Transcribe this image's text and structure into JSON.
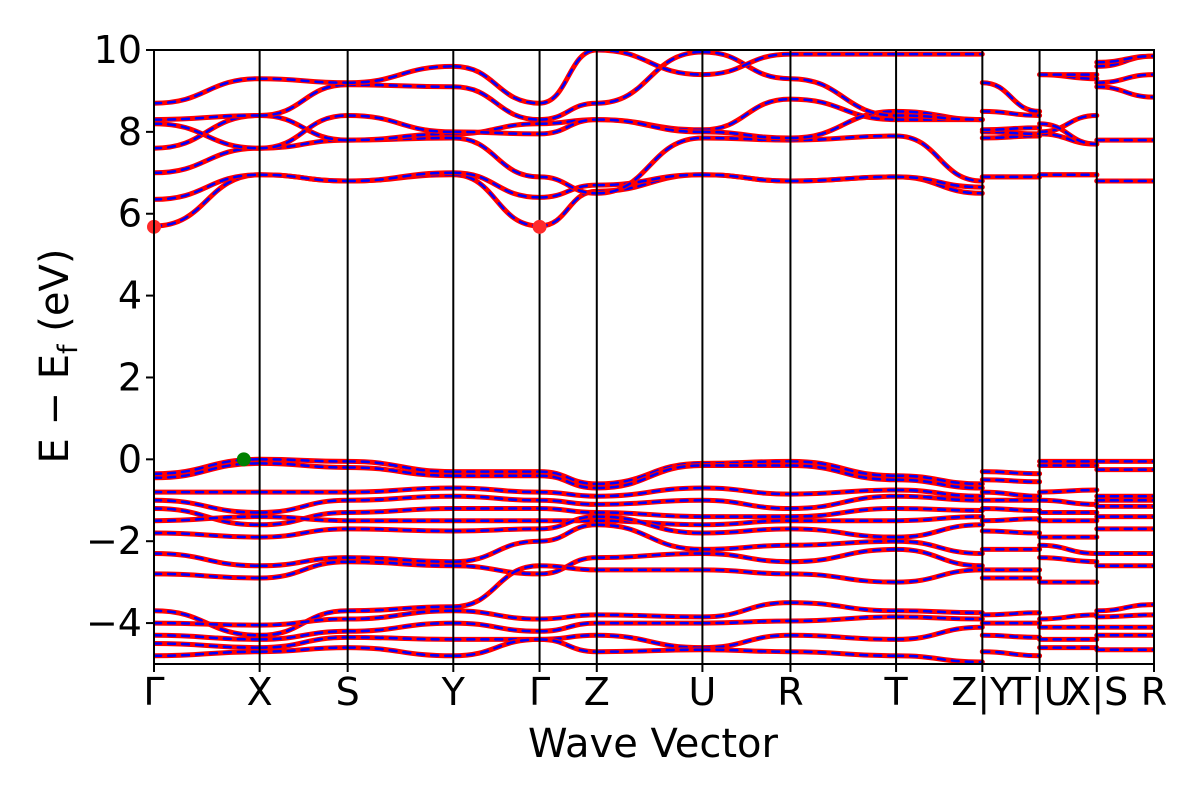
{
  "chart_data": {
    "type": "line",
    "title": "",
    "xlabel": "Wave Vector",
    "ylabel_parts": [
      "E − E",
      "f",
      " (eV)"
    ],
    "ylim": [
      -5,
      10
    ],
    "yticks": [
      -4,
      -2,
      0,
      2,
      4,
      6,
      8,
      10
    ],
    "grid": false,
    "line_colors": [
      "#ff0000",
      "#0000ff"
    ],
    "kpoints": [
      {
        "label": "Γ",
        "x": 0.0
      },
      {
        "label": "X",
        "x": 1.2
      },
      {
        "label": "S",
        "x": 2.2
      },
      {
        "label": "Y",
        "x": 3.4
      },
      {
        "label": "Γ",
        "x": 4.38
      },
      {
        "label": "Z",
        "x": 5.03
      },
      {
        "label": "U",
        "x": 6.23
      },
      {
        "label": "R",
        "x": 7.23
      },
      {
        "label": "T",
        "x": 8.43
      },
      {
        "label": "Z|Y",
        "x": 9.41
      },
      {
        "label": "T|U",
        "x": 10.06
      },
      {
        "label": "X|S",
        "x": 10.71
      },
      {
        "label": "R",
        "x": 11.36
      }
    ],
    "segments": [
      {
        "from": 0.0,
        "to": 1.2
      },
      {
        "from": 1.2,
        "to": 2.2
      },
      {
        "from": 2.2,
        "to": 3.4
      },
      {
        "from": 3.4,
        "to": 4.38
      },
      {
        "from": 4.38,
        "to": 5.03
      },
      {
        "from": 5.03,
        "to": 6.23
      },
      {
        "from": 6.23,
        "to": 7.23
      },
      {
        "from": 7.23,
        "to": 8.43
      },
      {
        "from": 8.43,
        "to": 9.41
      },
      {
        "from": 9.41,
        "to": 10.06
      },
      {
        "from": 10.06,
        "to": 10.71
      },
      {
        "from": 10.71,
        "to": 11.36
      }
    ],
    "bands": [
      {
        "segments": [
          [
            5.7,
            6.95
          ],
          [
            6.95,
            6.8
          ],
          [
            6.8,
            6.95
          ],
          [
            6.95,
            5.7
          ],
          [
            5.7,
            6.55
          ],
          [
            6.55,
            6.95
          ],
          [
            6.95,
            6.8
          ],
          [
            6.8,
            6.9
          ],
          [
            6.9,
            6.5
          ],
          [
            6.9,
            6.9
          ],
          [
            6.95,
            6.95
          ],
          [
            6.8,
            6.8
          ]
        ]
      },
      {
        "segments": [
          [
            6.35,
            6.95
          ],
          [
            6.95,
            6.8
          ],
          [
            6.8,
            7.0
          ],
          [
            7.0,
            6.4
          ],
          [
            6.4,
            6.7
          ],
          [
            6.7,
            6.95
          ],
          [
            6.95,
            6.8
          ],
          [
            6.8,
            6.9
          ],
          [
            6.9,
            6.65
          ],
          [
            6.9,
            6.9
          ],
          [
            6.95,
            6.95
          ],
          [
            6.8,
            6.8
          ]
        ]
      },
      {
        "segments": [
          [
            7.0,
            7.6
          ],
          [
            7.6,
            7.8
          ],
          [
            7.8,
            7.85
          ],
          [
            7.85,
            6.9
          ],
          [
            6.9,
            6.5
          ],
          [
            6.5,
            7.85
          ],
          [
            7.85,
            7.8
          ],
          [
            7.8,
            7.9
          ],
          [
            7.9,
            6.8
          ],
          [
            7.85,
            7.9
          ],
          [
            7.95,
            7.7
          ],
          [
            7.8,
            7.8
          ]
        ]
      },
      {
        "segments": [
          [
            7.6,
            8.4
          ],
          [
            8.4,
            7.8
          ],
          [
            7.8,
            7.95
          ],
          [
            7.95,
            8.2
          ],
          [
            8.2,
            8.3
          ],
          [
            8.3,
            8.05
          ],
          [
            8.05,
            8.8
          ],
          [
            8.8,
            8.3
          ],
          [
            8.3,
            8.3
          ],
          [
            8.0,
            7.95
          ],
          [
            8.0,
            8.4
          ],
          [
            9.1,
            8.85
          ]
        ]
      },
      {
        "segments": [
          [
            8.2,
            7.6
          ],
          [
            7.6,
            8.4
          ],
          [
            8.4,
            8.0
          ],
          [
            8.0,
            7.95
          ],
          [
            7.95,
            8.3
          ],
          [
            8.3,
            8.0
          ],
          [
            8.0,
            7.85
          ],
          [
            7.85,
            8.5
          ],
          [
            8.5,
            8.3
          ],
          [
            8.05,
            8.1
          ],
          [
            8.2,
            7.7
          ],
          [
            9.2,
            9.4
          ]
        ]
      },
      {
        "segments": [
          [
            8.3,
            8.4
          ],
          [
            8.4,
            9.15
          ],
          [
            9.15,
            9.1
          ],
          [
            9.1,
            8.3
          ],
          [
            8.3,
            8.7
          ],
          [
            8.7,
            9.95
          ],
          [
            9.95,
            9.3
          ],
          [
            9.3,
            8.4
          ],
          [
            8.4,
            8.3
          ],
          [
            8.5,
            8.4
          ],
          [
            9.4,
            9.3
          ],
          [
            9.6,
            9.85
          ]
        ]
      },
      {
        "segments": [
          [
            8.7,
            9.3
          ],
          [
            9.3,
            9.2
          ],
          [
            9.2,
            9.6
          ],
          [
            9.6,
            8.7
          ],
          [
            8.7,
            10.0
          ],
          [
            10.0,
            9.4
          ],
          [
            9.4,
            9.9
          ],
          [
            9.9,
            9.9
          ],
          [
            9.9,
            9.9
          ],
          [
            9.2,
            8.5
          ],
          [
            9.4,
            9.4
          ],
          [
            9.7,
            9.85
          ]
        ]
      },
      {
        "segments": [
          [
            -0.35,
            0.0
          ],
          [
            0.0,
            -0.05
          ],
          [
            -0.05,
            -0.3
          ],
          [
            -0.3,
            -0.3
          ],
          [
            -0.3,
            -0.6
          ],
          [
            -0.6,
            -0.1
          ],
          [
            -0.1,
            -0.05
          ],
          [
            -0.05,
            -0.4
          ],
          [
            -0.4,
            -0.6
          ],
          [
            -0.3,
            -0.35
          ],
          [
            -0.05,
            -0.05
          ],
          [
            -0.05,
            -0.05
          ]
        ]
      },
      {
        "segments": [
          [
            -0.45,
            -0.1
          ],
          [
            -0.1,
            -0.2
          ],
          [
            -0.2,
            -0.4
          ],
          [
            -0.4,
            -0.4
          ],
          [
            -0.4,
            -0.7
          ],
          [
            -0.7,
            -0.15
          ],
          [
            -0.15,
            -0.15
          ],
          [
            -0.15,
            -0.5
          ],
          [
            -0.5,
            -0.7
          ],
          [
            -0.5,
            -0.55
          ],
          [
            -0.15,
            -0.15
          ],
          [
            -0.25,
            -0.25
          ]
        ]
      },
      {
        "segments": [
          [
            -0.8,
            -0.8
          ],
          [
            -0.8,
            -0.8
          ],
          [
            -0.8,
            -0.7
          ],
          [
            -0.7,
            -0.8
          ],
          [
            -0.8,
            -0.9
          ],
          [
            -0.9,
            -0.7
          ],
          [
            -0.7,
            -0.85
          ],
          [
            -0.85,
            -0.75
          ],
          [
            -0.75,
            -0.9
          ],
          [
            -0.8,
            -0.9
          ],
          [
            -0.8,
            -0.75
          ],
          [
            -0.9,
            -0.9
          ]
        ]
      },
      {
        "segments": [
          [
            -1.0,
            -1.3
          ],
          [
            -1.3,
            -1.0
          ],
          [
            -1.0,
            -0.9
          ],
          [
            -0.9,
            -1.0
          ],
          [
            -1.0,
            -1.1
          ],
          [
            -1.1,
            -1.0
          ],
          [
            -1.0,
            -1.2
          ],
          [
            -1.2,
            -0.9
          ],
          [
            -0.9,
            -1.0
          ],
          [
            -1.0,
            -1.0
          ],
          [
            -1.0,
            -1.1
          ],
          [
            -1.0,
            -1.0
          ]
        ]
      },
      {
        "segments": [
          [
            -1.2,
            -1.6
          ],
          [
            -1.6,
            -1.3
          ],
          [
            -1.3,
            -1.2
          ],
          [
            -1.2,
            -1.2
          ],
          [
            -1.2,
            -1.3
          ],
          [
            -1.3,
            -1.4
          ],
          [
            -1.4,
            -1.4
          ],
          [
            -1.4,
            -1.2
          ],
          [
            -1.2,
            -1.25
          ],
          [
            -1.2,
            -1.25
          ],
          [
            -1.3,
            -1.3
          ],
          [
            -1.15,
            -1.15
          ]
        ]
      },
      {
        "segments": [
          [
            -1.5,
            -1.4
          ],
          [
            -1.4,
            -1.5
          ],
          [
            -1.5,
            -1.5
          ],
          [
            -1.5,
            -1.5
          ],
          [
            -1.5,
            -1.5
          ],
          [
            -1.5,
            -1.6
          ],
          [
            -1.6,
            -1.5
          ],
          [
            -1.5,
            -1.5
          ],
          [
            -1.5,
            -1.4
          ],
          [
            -1.5,
            -1.45
          ],
          [
            -1.5,
            -1.5
          ],
          [
            -1.4,
            -1.4
          ]
        ]
      },
      {
        "segments": [
          [
            -1.8,
            -1.9
          ],
          [
            -1.9,
            -1.7
          ],
          [
            -1.7,
            -1.75
          ],
          [
            -1.75,
            -1.7
          ],
          [
            -1.7,
            -1.4
          ],
          [
            -1.4,
            -1.8
          ],
          [
            -1.8,
            -1.7
          ],
          [
            -1.7,
            -1.9
          ],
          [
            -1.9,
            -1.6
          ],
          [
            -1.75,
            -1.8
          ],
          [
            -1.9,
            -1.9
          ],
          [
            -1.7,
            -1.7
          ]
        ]
      },
      {
        "segments": [
          [
            -2.3,
            -2.6
          ],
          [
            -2.6,
            -2.4
          ],
          [
            -2.4,
            -2.5
          ],
          [
            -2.5,
            -2.0
          ],
          [
            -2.0,
            -1.6
          ],
          [
            -1.6,
            -2.2
          ],
          [
            -2.2,
            -2.1
          ],
          [
            -2.1,
            -2.0
          ],
          [
            -2.0,
            -2.3
          ],
          [
            -2.2,
            -2.2
          ],
          [
            -2.1,
            -2.3
          ],
          [
            -2.3,
            -2.3
          ]
        ]
      },
      {
        "segments": [
          [
            -2.8,
            -2.9
          ],
          [
            -2.9,
            -2.5
          ],
          [
            -2.5,
            -2.6
          ],
          [
            -2.6,
            -2.8
          ],
          [
            -2.8,
            -2.4
          ],
          [
            -2.4,
            -2.3
          ],
          [
            -2.3,
            -2.5
          ],
          [
            -2.5,
            -2.2
          ],
          [
            -2.2,
            -2.6
          ],
          [
            -2.7,
            -2.7
          ],
          [
            -2.4,
            -2.5
          ],
          [
            -2.6,
            -2.6
          ]
        ]
      },
      {
        "segments": [
          [
            -3.7,
            -4.3
          ],
          [
            -4.3,
            -3.7
          ],
          [
            -3.7,
            -3.6
          ],
          [
            -3.6,
            -2.6
          ],
          [
            -2.6,
            -2.7
          ],
          [
            -2.7,
            -2.7
          ],
          [
            -2.7,
            -2.8
          ],
          [
            -2.8,
            -3.0
          ],
          [
            -3.0,
            -2.7
          ],
          [
            -2.9,
            -2.9
          ],
          [
            -3.0,
            -3.0
          ],
          [
            -3.7,
            -3.55
          ]
        ]
      },
      {
        "segments": [
          [
            -4.0,
            -4.05
          ],
          [
            -4.05,
            -3.9
          ],
          [
            -3.9,
            -3.7
          ],
          [
            -3.7,
            -3.9
          ],
          [
            -3.9,
            -3.8
          ],
          [
            -3.8,
            -3.85
          ],
          [
            -3.85,
            -3.5
          ],
          [
            -3.5,
            -3.7
          ],
          [
            -3.7,
            -3.75
          ],
          [
            -3.8,
            -3.75
          ],
          [
            -3.9,
            -3.8
          ],
          [
            -3.85,
            -3.8
          ]
        ]
      },
      {
        "segments": [
          [
            -4.3,
            -4.4
          ],
          [
            -4.4,
            -4.2
          ],
          [
            -4.2,
            -4.0
          ],
          [
            -4.0,
            -4.2
          ],
          [
            -4.2,
            -4.0
          ],
          [
            -4.0,
            -4.0
          ],
          [
            -4.0,
            -3.95
          ],
          [
            -3.95,
            -3.85
          ],
          [
            -3.85,
            -3.9
          ],
          [
            -4.0,
            -4.0
          ],
          [
            -4.1,
            -4.1
          ],
          [
            -4.1,
            -4.1
          ]
        ]
      },
      {
        "segments": [
          [
            -4.5,
            -4.6
          ],
          [
            -4.6,
            -4.35
          ],
          [
            -4.35,
            -4.4
          ],
          [
            -4.4,
            -4.4
          ],
          [
            -4.4,
            -4.3
          ],
          [
            -4.3,
            -4.6
          ],
          [
            -4.6,
            -4.3
          ],
          [
            -4.3,
            -4.4
          ],
          [
            -4.4,
            -4.1
          ],
          [
            -4.3,
            -4.35
          ],
          [
            -4.4,
            -4.4
          ],
          [
            -4.3,
            -4.3
          ]
        ]
      },
      {
        "segments": [
          [
            -4.8,
            -4.7
          ],
          [
            -4.7,
            -4.6
          ],
          [
            -4.6,
            -4.8
          ],
          [
            -4.8,
            -4.4
          ],
          [
            -4.4,
            -4.7
          ],
          [
            -4.7,
            -4.65
          ],
          [
            -4.65,
            -4.7
          ],
          [
            -4.7,
            -4.8
          ],
          [
            -4.8,
            -4.95
          ],
          [
            -4.7,
            -4.8
          ],
          [
            -4.6,
            -4.6
          ],
          [
            -4.65,
            -4.65
          ]
        ]
      }
    ],
    "markers": [
      {
        "x": 0.0,
        "y": 5.68,
        "color": "#ff2a2a"
      },
      {
        "x": 4.38,
        "y": 5.68,
        "color": "#ff2a2a"
      },
      {
        "x": 1.02,
        "y": 0.0,
        "color": "#008000"
      }
    ]
  }
}
